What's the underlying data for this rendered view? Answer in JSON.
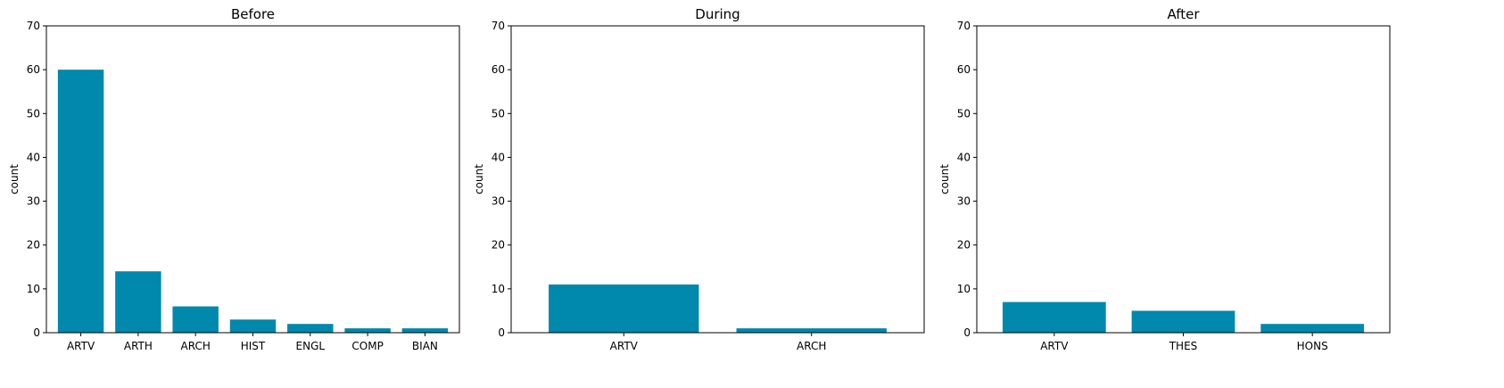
{
  "chart_data": [
    {
      "type": "bar",
      "title": "Before",
      "xlabel": "",
      "ylabel": "count",
      "ylim": [
        0,
        70
      ],
      "yticks": [
        0,
        10,
        20,
        30,
        40,
        50,
        60,
        70
      ],
      "categories": [
        "ARTV",
        "ARTH",
        "ARCH",
        "HIST",
        "ENGL",
        "COMP",
        "BIAN"
      ],
      "values": [
        60,
        14,
        6,
        3,
        2,
        1,
        1
      ],
      "grid": false,
      "bar_color": "#0088ad"
    },
    {
      "type": "bar",
      "title": "During",
      "xlabel": "",
      "ylabel": "count",
      "ylim": [
        0,
        70
      ],
      "yticks": [
        0,
        10,
        20,
        30,
        40,
        50,
        60,
        70
      ],
      "categories": [
        "ARTV",
        "ARCH"
      ],
      "values": [
        11,
        1
      ],
      "grid": false,
      "bar_color": "#0088ad"
    },
    {
      "type": "bar",
      "title": "After",
      "xlabel": "",
      "ylabel": "count",
      "ylim": [
        0,
        70
      ],
      "yticks": [
        0,
        10,
        20,
        30,
        40,
        50,
        60,
        70
      ],
      "categories": [
        "ARTV",
        "THES",
        "HONS"
      ],
      "values": [
        7,
        5,
        2
      ],
      "grid": false,
      "bar_color": "#0088ad"
    }
  ]
}
